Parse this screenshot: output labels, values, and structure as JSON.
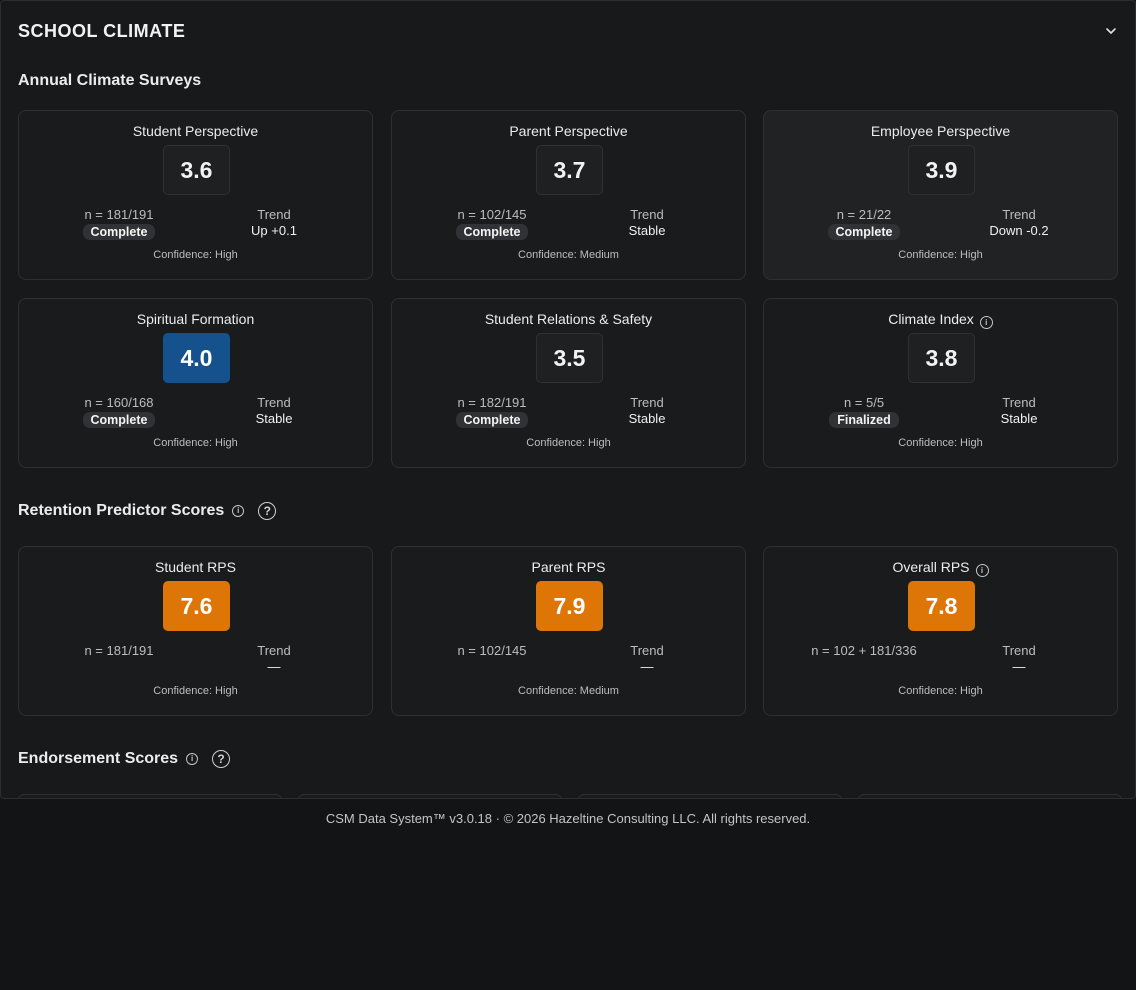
{
  "panel": {
    "title": "SCHOOL CLIMATE"
  },
  "sections": {
    "climate": {
      "title": "Annual Climate Surveys"
    },
    "rps": {
      "title": "Retention Predictor Scores"
    },
    "endorsement": {
      "title": "Endorsement Scores"
    }
  },
  "climate_cards": [
    {
      "title": "Student Perspective",
      "score": "3.6",
      "n": "n = 181/191",
      "status": "Complete",
      "trend_label": "Trend",
      "trend": "Up +0.1",
      "confidence": "Confidence: High"
    },
    {
      "title": "Parent Perspective",
      "score": "3.7",
      "n": "n = 102/145",
      "status": "Complete",
      "trend_label": "Trend",
      "trend": "Stable",
      "confidence": "Confidence: Medium"
    },
    {
      "title": "Employee Perspective",
      "score": "3.9",
      "n": "n = 21/22",
      "status": "Complete",
      "trend_label": "Trend",
      "trend": "Down -0.2",
      "confidence": "Confidence: High"
    },
    {
      "title": "Spiritual Formation",
      "score": "4.0",
      "n": "n = 160/168",
      "status": "Complete",
      "trend_label": "Trend",
      "trend": "Stable",
      "confidence": "Confidence: High"
    },
    {
      "title": "Student Relations & Safety",
      "score": "3.5",
      "n": "n = 182/191",
      "status": "Complete",
      "trend_label": "Trend",
      "trend": "Stable",
      "confidence": "Confidence: High"
    },
    {
      "title": "Climate Index",
      "score": "3.8",
      "n": "n = 5/5",
      "status": "Finalized",
      "trend_label": "Trend",
      "trend": "Stable",
      "confidence": "Confidence: High"
    }
  ],
  "rps_cards": [
    {
      "title": "Student RPS",
      "score": "7.6",
      "n": "n = 181/191",
      "trend_label": "Trend",
      "trend": "—",
      "confidence": "Confidence: High"
    },
    {
      "title": "Parent RPS",
      "score": "7.9",
      "n": "n = 102/145",
      "trend_label": "Trend",
      "trend": "—",
      "confidence": "Confidence: Medium"
    },
    {
      "title": "Overall RPS",
      "score": "7.8",
      "n": "n = 102 + 181/336",
      "trend_label": "Trend",
      "trend": "—",
      "confidence": "Confidence: High"
    }
  ],
  "colors": {
    "blue_highlight": "#15528d",
    "orange_highlight": "#dd7606"
  },
  "icons": {
    "collapse": "chevron-down-icon",
    "info": "info-icon",
    "help": "help-circle-icon"
  },
  "footer": {
    "text": "CSM Data System™ v3.0.18 · © 2026 Hazeltine Consulting LLC. All rights reserved."
  }
}
